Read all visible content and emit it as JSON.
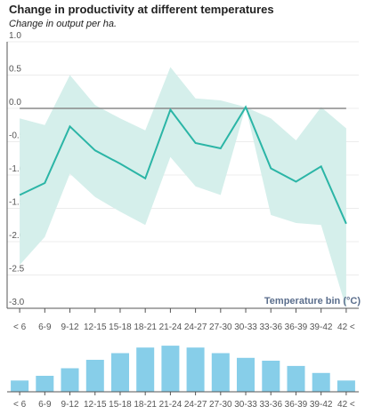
{
  "chart_data": [
    {
      "type": "line",
      "title": "Change in productivity at different temperatures",
      "subtitle": "Change in output per ha.",
      "xlabel": "Temperature bin (°C)",
      "ylabel": "",
      "categories": [
        "< 6",
        "6-9",
        "9-12",
        "12-15",
        "15-18",
        "18-21",
        "21-24",
        "24-27",
        "27-30",
        "30-33",
        "33-36",
        "36-39",
        "39-42",
        "42 <"
      ],
      "ylim": [
        -3.0,
        1.0
      ],
      "yticks": [
        1.0,
        0.5,
        0.0,
        -0.5,
        -1.0,
        -1.5,
        -2.0,
        -2.5,
        -3.0
      ],
      "ytick_labels": [
        "1.0",
        "0.5",
        "0.0",
        "-0.5",
        "-1.0",
        "-1.5",
        "-2.0",
        "-2.5",
        "-3.0"
      ],
      "series": [
        {
          "values": [
            -1.3,
            -1.12,
            -0.27,
            -0.63,
            -0.83,
            -1.05,
            -0.02,
            -0.52,
            -0.6,
            0.02,
            -0.9,
            -1.1,
            -0.87,
            -1.73
          ],
          "upper": [
            -0.15,
            -0.25,
            0.5,
            0.05,
            -0.15,
            -0.33,
            0.62,
            0.15,
            0.12,
            0.02,
            -0.15,
            -0.48,
            0.02,
            -0.3
          ],
          "lower": [
            -2.35,
            -1.93,
            -0.98,
            -1.33,
            -1.55,
            -1.75,
            -0.73,
            -1.17,
            -1.3,
            0.02,
            -1.6,
            -1.72,
            -1.75,
            -3.0
          ],
          "color": "#2bb5a6",
          "band_color": "#d5efeb"
        }
      ],
      "reference_line": {
        "y": 0,
        "color": "#8a8a8a"
      }
    },
    {
      "type": "bar",
      "categories": [
        "< 6",
        "6-9",
        "9-12",
        "12-15",
        "15-18",
        "18-21",
        "21-24",
        "24-27",
        "27-30",
        "30-33",
        "33-36",
        "36-39",
        "39-42",
        "42 <"
      ],
      "values": [
        0.24,
        0.34,
        0.5,
        0.68,
        0.82,
        0.94,
        0.98,
        0.94,
        0.82,
        0.72,
        0.66,
        0.55,
        0.4,
        0.24
      ],
      "color": "#87cee9"
    }
  ]
}
